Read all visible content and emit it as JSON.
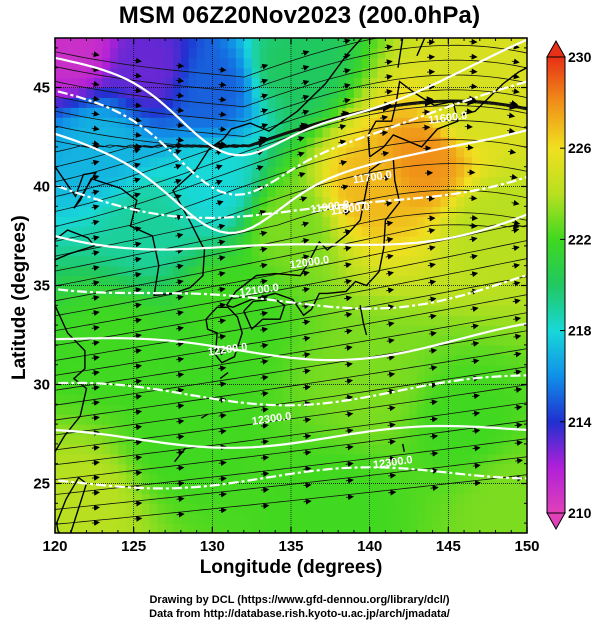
{
  "title": "MSM 06Z20Nov2023 (200.0hPa)",
  "xlabel": "Longitude (degrees)",
  "ylabel": "Latitude  (degrees)",
  "credits": {
    "line1": "Drawing by DCL (https://www.gfd-dennou.org/library/dcl/)",
    "line2": "Data from http://database.rish.kyoto-u.ac.jp/arch/jmadata/"
  },
  "chart_data": {
    "type": "heatmap",
    "variable": "temperature with geopotential height contours and wind streamlines",
    "xlim": [
      120,
      150
    ],
    "ylim": [
      22.5,
      47.5
    ],
    "x_ticks": [
      120,
      125,
      130,
      135,
      140,
      145,
      150
    ],
    "y_ticks": [
      25,
      30,
      35,
      40,
      45
    ],
    "colorbar": {
      "min": 210,
      "max": 230,
      "ticks": [
        210,
        214,
        218,
        222,
        226,
        230
      ],
      "colors": [
        "#e040b8",
        "#b020d8",
        "#2030d0",
        "#1090e8",
        "#18d8d8",
        "#20c860",
        "#40d820",
        "#b8e020",
        "#f0e020",
        "#f09018",
        "#e83018"
      ]
    },
    "field_anchors": [
      {
        "lon": 121,
        "lat": 47,
        "value": 211
      },
      {
        "lon": 126,
        "lat": 46,
        "value": 213
      },
      {
        "lon": 130,
        "lat": 45,
        "value": 215
      },
      {
        "lon": 123,
        "lat": 42,
        "value": 217
      },
      {
        "lon": 130,
        "lat": 40,
        "value": 218
      },
      {
        "lon": 126,
        "lat": 38,
        "value": 219
      },
      {
        "lon": 135,
        "lat": 46,
        "value": 220
      },
      {
        "lon": 140,
        "lat": 40,
        "value": 227
      },
      {
        "lon": 143.5,
        "lat": 41.5,
        "value": 228
      },
      {
        "lon": 146,
        "lat": 44,
        "value": 225
      },
      {
        "lon": 148,
        "lat": 38,
        "value": 224
      },
      {
        "lon": 135,
        "lat": 38,
        "value": 223
      },
      {
        "lon": 131,
        "lat": 34,
        "value": 222
      },
      {
        "lon": 124,
        "lat": 32,
        "value": 222
      },
      {
        "lon": 140,
        "lat": 30,
        "value": 223
      },
      {
        "lon": 128,
        "lat": 27,
        "value": 222
      },
      {
        "lon": 146,
        "lat": 28,
        "value": 222
      },
      {
        "lon": 122,
        "lat": 24,
        "value": 224
      },
      {
        "lon": 138,
        "lat": 24,
        "value": 222
      },
      {
        "lon": 149,
        "lat": 24,
        "value": 223
      }
    ],
    "contour_labels": [
      {
        "text": "11900.0",
        "lon": 137.5,
        "lat": 38.8
      },
      {
        "text": "12000.0",
        "lon": 136.2,
        "lat": 36.0
      },
      {
        "text": "12100.0",
        "lon": 133.0,
        "lat": 34.6
      },
      {
        "text": "11600.0",
        "lon": 145.0,
        "lat": 43.3
      },
      {
        "text": "11700.0",
        "lon": 140.2,
        "lat": 40.3
      },
      {
        "text": "11800.0",
        "lon": 138.8,
        "lat": 38.7
      },
      {
        "text": "12200.0",
        "lon": 131.0,
        "lat": 31.6
      },
      {
        "text": "12300.0",
        "lon": 133.8,
        "lat": 28.1
      },
      {
        "text": "12300.0",
        "lon": 141.5,
        "lat": 25.9
      }
    ]
  }
}
